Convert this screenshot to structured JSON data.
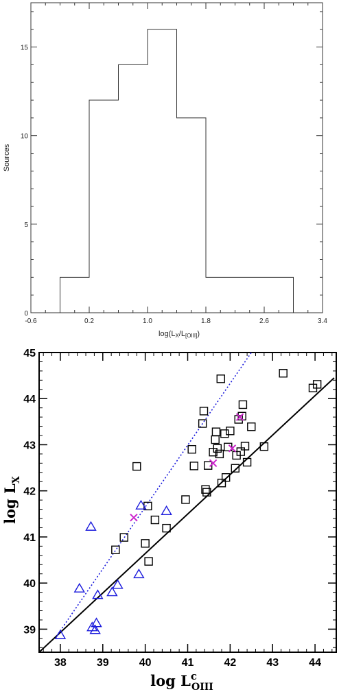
{
  "chart_data": [
    {
      "type": "histogram",
      "title": "",
      "xlabel": "log(L",
      "xlabel_sub_x": "X",
      "xlabel_mid": "/L",
      "xlabel_sub_oiii": "[OIII]",
      "xlabel_end": ")",
      "ylabel": "Sources",
      "xlim": [
        -0.6,
        3.4
      ],
      "ylim": [
        0,
        17.5
      ],
      "xticks": [
        "-0.6",
        "0.2",
        "1.0",
        "1.8",
        "2.6",
        "3.4"
      ],
      "yticks": [
        "0",
        "5",
        "10",
        "15"
      ],
      "bins": [
        {
          "x0": -0.2,
          "x1": 0.2,
          "count": 2
        },
        {
          "x0": 0.2,
          "x1": 0.6,
          "count": 12
        },
        {
          "x0": 0.6,
          "x1": 1.0,
          "count": 14
        },
        {
          "x0": 1.0,
          "x1": 1.4,
          "count": 16
        },
        {
          "x0": 1.4,
          "x1": 1.8,
          "count": 11
        },
        {
          "x0": 1.8,
          "x1": 2.2,
          "count": 2
        },
        {
          "x0": 2.2,
          "x1": 2.6,
          "count": 2
        },
        {
          "x0": 2.6,
          "x1": 3.0,
          "count": 2
        }
      ]
    },
    {
      "type": "scatter",
      "title": "",
      "xlabel": "log L",
      "xlabel_sup": "c",
      "xlabel_sub": "OIII",
      "ylabel": "log L",
      "ylabel_sub": "X",
      "xlim": [
        37.5,
        44.5
      ],
      "ylim": [
        38.5,
        45
      ],
      "xticks": [
        "38",
        "39",
        "40",
        "41",
        "42",
        "43",
        "44"
      ],
      "yticks": [
        "39",
        "40",
        "41",
        "42",
        "43",
        "44",
        "45"
      ],
      "colors": {
        "squares": "#000000",
        "triangles": "#1a1adc",
        "crosses": "#cc22cc",
        "solid_line": "#000000",
        "dotted_line": "#1a1adc"
      },
      "series": [
        {
          "marker": "square",
          "points": [
            [
              39.3,
              40.72
            ],
            [
              39.5,
              40.99
            ],
            [
              39.8,
              42.53
            ],
            [
              40.0,
              40.86
            ],
            [
              40.06,
              41.67
            ],
            [
              40.08,
              40.47
            ],
            [
              40.23,
              41.37
            ],
            [
              40.5,
              41.19
            ],
            [
              40.95,
              41.81
            ],
            [
              41.1,
              42.9
            ],
            [
              41.15,
              42.54
            ],
            [
              41.35,
              43.46
            ],
            [
              41.38,
              43.73
            ],
            [
              41.42,
              42.03
            ],
            [
              41.45,
              41.97
            ],
            [
              41.48,
              42.55
            ],
            [
              41.6,
              42.84
            ],
            [
              41.65,
              43.11
            ],
            [
              41.67,
              43.28
            ],
            [
              41.7,
              42.92
            ],
            [
              41.75,
              42.8
            ],
            [
              41.78,
              44.43
            ],
            [
              41.8,
              42.17
            ],
            [
              41.87,
              43.24
            ],
            [
              41.9,
              42.29
            ],
            [
              41.95,
              42.95
            ],
            [
              42.0,
              43.3
            ],
            [
              42.12,
              42.49
            ],
            [
              42.15,
              42.77
            ],
            [
              42.2,
              43.55
            ],
            [
              42.25,
              42.85
            ],
            [
              42.28,
              43.62
            ],
            [
              42.3,
              43.87
            ],
            [
              42.35,
              42.97
            ],
            [
              42.4,
              42.62
            ],
            [
              42.5,
              43.39
            ],
            [
              42.8,
              42.96
            ],
            [
              43.25,
              44.55
            ],
            [
              43.95,
              44.23
            ],
            [
              44.05,
              44.31
            ]
          ]
        },
        {
          "marker": "triangle",
          "points": [
            [
              38.0,
              38.87
            ],
            [
              38.45,
              39.88
            ],
            [
              38.72,
              41.22
            ],
            [
              38.75,
              39.04
            ],
            [
              38.82,
              38.98
            ],
            [
              38.85,
              39.13
            ],
            [
              38.88,
              39.74
            ],
            [
              39.22,
              39.8
            ],
            [
              39.35,
              39.96
            ],
            [
              39.85,
              40.19
            ],
            [
              39.9,
              41.68
            ],
            [
              40.5,
              41.56
            ]
          ]
        },
        {
          "marker": "cross",
          "points": [
            [
              39.73,
              41.42
            ],
            [
              41.6,
              42.6
            ],
            [
              42.05,
              42.92
            ],
            [
              42.23,
              43.6
            ]
          ]
        }
      ],
      "lines": [
        {
          "style": "solid",
          "from": [
            37.5,
            38.5
          ],
          "to": [
            44.45,
            44.45
          ]
        },
        {
          "style": "dotted",
          "from": [
            37.95,
            38.9
          ],
          "to": [
            42.5,
            45.0
          ]
        }
      ]
    }
  ]
}
